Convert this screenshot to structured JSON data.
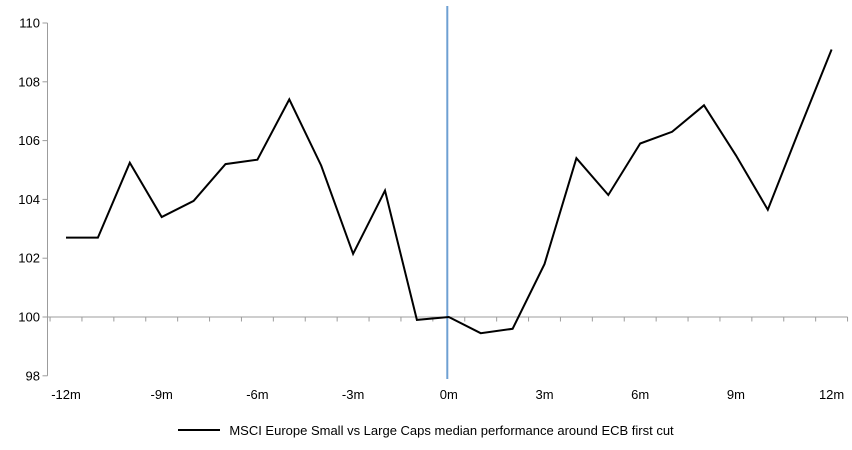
{
  "chart_data": {
    "type": "line",
    "title": "",
    "xlabel": "",
    "ylabel": "",
    "ylim": [
      98,
      110
    ],
    "xlim": [
      -12.5,
      12.5
    ],
    "grid": false,
    "legend_position": "bottom-center",
    "axis_color": "#9C9C9C",
    "baseline_value": 100,
    "event_line": {
      "x": 0,
      "color": "#6EA0D2"
    },
    "y_ticks": [
      98,
      100,
      102,
      104,
      106,
      108,
      110
    ],
    "y_tick_labels": [
      "98",
      "100",
      "102",
      "104",
      "106",
      "108",
      "110"
    ],
    "x_ticks": [
      -12,
      -9,
      -6,
      -3,
      0,
      3,
      6,
      9,
      12
    ],
    "x_tick_labels": [
      "-12m",
      "-9m",
      "-6m",
      "-3m",
      "0m",
      "3m",
      "6m",
      "9m",
      "12m"
    ],
    "series": [
      {
        "name": "MSCI Europe Small vs Large Caps median performance around ECB first cut",
        "color": "#000000",
        "x": [
          -12,
          -11,
          -10,
          -9,
          -8,
          -7,
          -6,
          -5,
          -4,
          -3,
          -2,
          -1,
          0,
          1,
          2,
          3,
          4,
          5,
          6,
          7,
          8,
          9,
          10,
          11,
          12
        ],
        "values": [
          102.7,
          102.7,
          105.25,
          103.4,
          103.95,
          105.2,
          105.35,
          107.4,
          105.15,
          102.15,
          104.3,
          99.9,
          100.0,
          99.45,
          99.6,
          101.8,
          105.4,
          104.15,
          105.9,
          106.3,
          107.2,
          105.5,
          103.65,
          106.4,
          109.1
        ]
      }
    ]
  }
}
